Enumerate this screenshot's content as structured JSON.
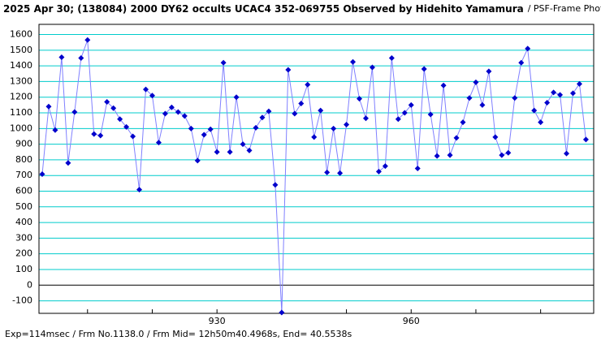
{
  "chart_data": {
    "type": "line",
    "title": "2025 Apr 30; (138084) 2000 DY62 occults UCAC4 352-069755 Observed by Hidehito Yamamura",
    "subtitle": "/ PSF-Frame Photometry /",
    "footer": "Exp=114msec / Frm No.1138.0 / Frm Mid= 12h50m40.4968s, End= 40.5538s",
    "x": [
      903,
      904,
      905,
      906,
      907,
      908,
      909,
      910,
      911,
      912,
      913,
      914,
      915,
      916,
      917,
      918,
      919,
      920,
      921,
      922,
      923,
      924,
      925,
      926,
      927,
      928,
      929,
      930,
      931,
      932,
      933,
      934,
      935,
      936,
      937,
      938,
      939,
      940,
      941,
      942,
      943,
      944,
      945,
      946,
      947,
      948,
      949,
      950,
      951,
      952,
      953,
      954,
      955,
      956,
      957,
      958,
      959,
      960,
      961,
      962,
      963,
      964,
      965,
      966,
      967,
      968,
      969,
      970,
      971,
      972,
      973,
      974,
      975,
      976,
      977,
      978,
      979,
      980,
      981,
      982,
      983,
      984,
      985,
      986,
      987
    ],
    "series": [
      {
        "color": "#8080ff",
        "marker_color": "#0000cc",
        "values": [
          709,
          1140,
          990,
          1455,
          780,
          1105,
          1450,
          1565,
          965,
          955,
          1170,
          1130,
          1060,
          1010,
          950,
          610,
          1250,
          1210,
          910,
          1095,
          1135,
          1105,
          1080,
          1000,
          795,
          960,
          995,
          850,
          1420,
          850,
          1200,
          900,
          860,
          1005,
          1070,
          1110,
          640,
          -175,
          1375,
          1095,
          1160,
          1280,
          945,
          1115,
          720,
          1000,
          715,
          1025,
          1425,
          1190,
          1065,
          1390,
          725,
          760,
          1450,
          1060,
          1100,
          1150,
          745,
          1380,
          1090,
          825,
          1275,
          830,
          940,
          1040,
          1195,
          1295,
          1150,
          1365,
          945,
          830,
          845,
          1195,
          1420,
          1510,
          1115,
          1040,
          1165,
          1230,
          1215,
          840,
          1225,
          1285,
          930
        ]
      }
    ],
    "xlim": [
      902.5,
      988.2
    ],
    "xticks": [
      930,
      960
    ],
    "x_minor_ticks": [
      910,
      920,
      930,
      940,
      950,
      960,
      970,
      980
    ],
    "ylim": [
      -180,
      1665
    ],
    "yticks": [
      -100,
      0,
      100,
      200,
      300,
      400,
      500,
      600,
      700,
      800,
      900,
      1000,
      1100,
      1200,
      1300,
      1400,
      1500,
      1600
    ],
    "grid": true,
    "grid_color": "#00cccc",
    "zero_line_color": "#000000"
  }
}
